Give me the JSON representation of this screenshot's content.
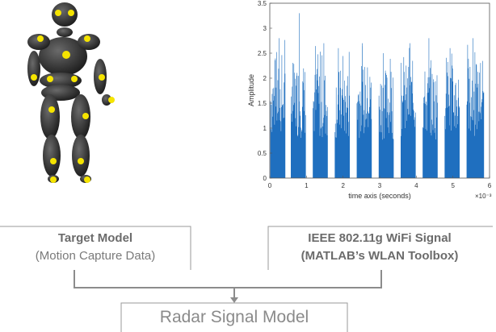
{
  "target_model": {
    "title": "Target Model",
    "subtitle": "(Motion Capture Data)"
  },
  "wifi_signal": {
    "title": "IEEE 802.11g WiFi Signal",
    "subtitle": "(MATLAB’s WLAN Toolbox)"
  },
  "radar_model": {
    "title": "Radar Signal Model"
  },
  "colors": {
    "signal": "#1f6fbf",
    "joints": "#f5e400",
    "body": "#3b3b3b",
    "lines": "#8c8c8c"
  },
  "chart_data": {
    "type": "bar",
    "title": "",
    "xlabel": "time axis (seconds)",
    "ylabel": "Amplitude",
    "x_ticks": [
      "0",
      "1",
      "2",
      "3",
      "4",
      "5",
      "6"
    ],
    "y_ticks": [
      "0",
      "0.5",
      "1",
      "1.5",
      "2",
      "2.5",
      "3",
      "3.5"
    ],
    "x_exponent": "×10⁻³",
    "xlim": [
      0,
      6
    ],
    "ylim": [
      0,
      3.5
    ],
    "bursts": [
      {
        "start": 0.02,
        "end": 0.42,
        "level": 2.3,
        "peak": 2.8
      },
      {
        "start": 0.58,
        "end": 0.98,
        "level": 2.3,
        "peak": 3.3
      },
      {
        "start": 1.18,
        "end": 1.58,
        "level": 2.2,
        "peak": 2.7
      },
      {
        "start": 1.78,
        "end": 2.18,
        "level": 2.2,
        "peak": 2.6
      },
      {
        "start": 2.38,
        "end": 2.78,
        "level": 2.3,
        "peak": 2.7
      },
      {
        "start": 2.98,
        "end": 3.38,
        "level": 2.2,
        "peak": 2.5
      },
      {
        "start": 3.58,
        "end": 3.98,
        "level": 2.3,
        "peak": 2.7
      },
      {
        "start": 4.18,
        "end": 4.58,
        "level": 2.2,
        "peak": 2.8
      },
      {
        "start": 4.78,
        "end": 5.18,
        "level": 2.3,
        "peak": 2.6
      },
      {
        "start": 5.38,
        "end": 5.85,
        "level": 2.3,
        "peak": 2.8
      }
    ]
  }
}
